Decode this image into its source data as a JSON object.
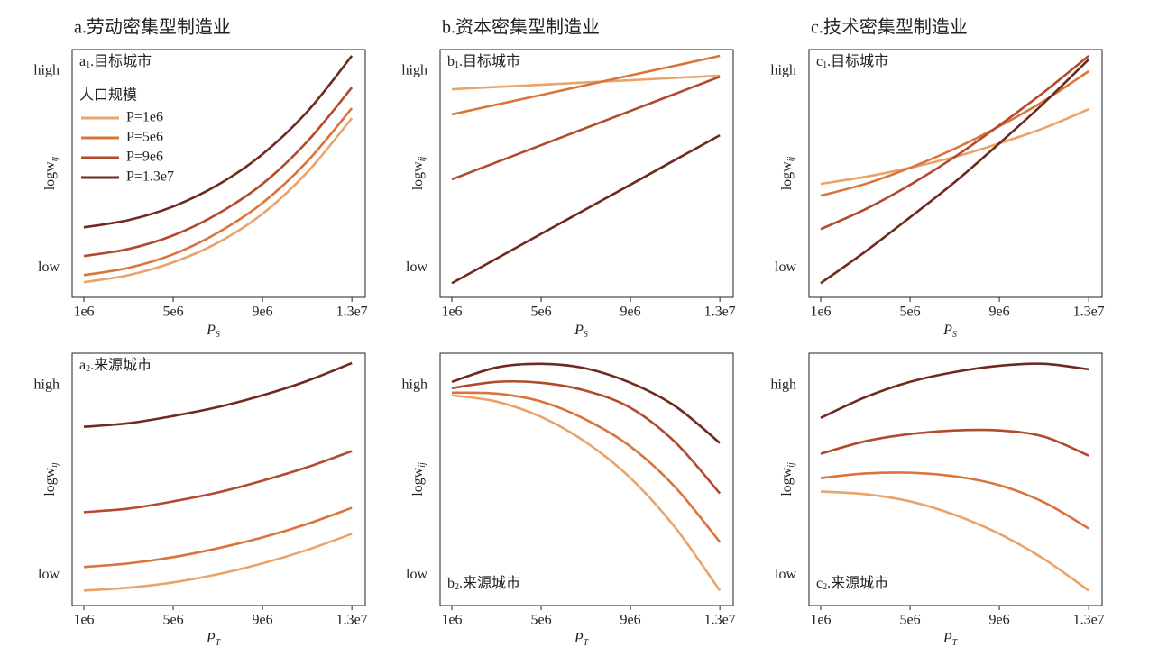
{
  "chart_data": [
    {
      "type": "line",
      "title": "a.劳动密集型制造业",
      "panel_label": {
        "text": "a",
        "sub": "1",
        "rest": ".目标城市"
      },
      "label_position": "top-left",
      "x_label": {
        "text": "P",
        "sub": "S"
      },
      "y_label": {
        "text": "logw",
        "sub": "ij"
      },
      "legend": {
        "title": "人口规模",
        "position": "top-left"
      },
      "x": [
        1000000,
        3000000,
        5000000,
        7000000,
        9000000,
        11000000,
        13000000
      ],
      "xlim": [
        475000,
        13600000
      ],
      "xticks": [
        {
          "value": 1000000,
          "label": "1e6"
        },
        {
          "value": 5000000,
          "label": "5e6"
        },
        {
          "value": 9000000,
          "label": "9e6"
        },
        {
          "value": 13000000,
          "label": "1.3e7"
        }
      ],
      "ylim": [
        -1.5,
        11.1
      ],
      "yticks": [
        {
          "value": 0,
          "label": "low"
        },
        {
          "value": 10,
          "label": "high"
        }
      ],
      "series": [
        {
          "name": "P=1e6",
          "color": "#e9a46c",
          "values": [
            -0.73,
            -0.37,
            0.28,
            1.28,
            2.75,
            4.86,
            7.61
          ]
        },
        {
          "name": "P=5e6",
          "color": "#d9743b",
          "values": [
            -0.37,
            0,
            0.69,
            1.79,
            3.3,
            5.41,
            8.12
          ]
        },
        {
          "name": "P=9e6",
          "color": "#b24a2e",
          "values": [
            0.6,
            0.96,
            1.65,
            2.75,
            4.27,
            6.42,
            9.17
          ]
        },
        {
          "name": "P=1.3e7",
          "color": "#6e2a1e",
          "values": [
            2.06,
            2.43,
            3.12,
            4.22,
            5.78,
            7.94,
            10.78
          ]
        }
      ]
    },
    {
      "type": "line",
      "title": "b.资本密集型制造业",
      "panel_label": {
        "text": "b",
        "sub": "1",
        "rest": ".目标城市"
      },
      "label_position": "top-left",
      "x_label": {
        "text": "P",
        "sub": "S"
      },
      "y_label": {
        "text": "logw",
        "sub": "ij"
      },
      "x": [
        1000000,
        3000000,
        5000000,
        7000000,
        9000000,
        11000000,
        13000000
      ],
      "xlim": [
        475000,
        13600000
      ],
      "xticks": [
        {
          "value": 1000000,
          "label": "1e6"
        },
        {
          "value": 5000000,
          "label": "5e6"
        },
        {
          "value": 9000000,
          "label": "9e6"
        },
        {
          "value": 13000000,
          "label": "1.3e7"
        }
      ],
      "ylim": [
        -1.5,
        11.1
      ],
      "yticks": [
        {
          "value": 0,
          "label": "low"
        },
        {
          "value": 10,
          "label": "high"
        }
      ],
      "series": [
        {
          "color": "#e9a46c",
          "values": [
            9.08,
            9.2,
            9.31,
            9.43,
            9.54,
            9.66,
            9.77
          ]
        },
        {
          "color": "#d9743b",
          "values": [
            7.8,
            8.3,
            8.79,
            9.29,
            9.79,
            10.28,
            10.78
          ]
        },
        {
          "color": "#b24a2e",
          "values": [
            4.5,
            5.37,
            6.24,
            7.11,
            7.98,
            8.85,
            9.72
          ]
        },
        {
          "color": "#6e2a1e",
          "values": [
            -0.78,
            0.47,
            1.73,
            2.98,
            4.23,
            5.49,
            6.74
          ]
        }
      ]
    },
    {
      "type": "line",
      "title": "c.技术密集型制造业",
      "panel_label": {
        "text": "c",
        "sub": "1",
        "rest": ".目标城市"
      },
      "label_position": "top-left",
      "x_label": {
        "text": "P",
        "sub": "S"
      },
      "y_label": {
        "text": "logw",
        "sub": "ij"
      },
      "x": [
        1000000,
        3000000,
        5000000,
        7000000,
        9000000,
        11000000,
        13000000
      ],
      "xlim": [
        475000,
        13600000
      ],
      "xticks": [
        {
          "value": 1000000,
          "label": "1e6"
        },
        {
          "value": 5000000,
          "label": "5e6"
        },
        {
          "value": 9000000,
          "label": "9e6"
        },
        {
          "value": 13000000,
          "label": "1.3e7"
        }
      ],
      "ylim": [
        -1.5,
        11.1
      ],
      "yticks": [
        {
          "value": 0,
          "label": "low"
        },
        {
          "value": 10,
          "label": "high"
        }
      ],
      "series": [
        {
          "color": "#e9a46c",
          "values": [
            4.27,
            4.63,
            5.09,
            5.64,
            6.33,
            7.11,
            8.07
          ]
        },
        {
          "color": "#d9743b",
          "values": [
            3.67,
            4.27,
            5.09,
            6.06,
            7.2,
            8.49,
            10.0
          ]
        },
        {
          "color": "#b24a2e",
          "values": [
            1.97,
            2.98,
            4.22,
            5.64,
            7.25,
            8.94,
            10.78
          ]
        },
        {
          "color": "#6e2a1e",
          "values": [
            -0.78,
            0.83,
            2.57,
            4.36,
            6.33,
            8.39,
            10.6
          ]
        }
      ]
    },
    {
      "type": "line",
      "panel_label": {
        "text": "a",
        "sub": "2",
        "rest": ".来源城市"
      },
      "label_position": "top-left",
      "x_label": {
        "text": "P",
        "sub": "T"
      },
      "y_label": {
        "text": "logw",
        "sub": "ij"
      },
      "x": [
        1000000,
        3000000,
        5000000,
        7000000,
        9000000,
        11000000,
        13000000
      ],
      "xlim": [
        475000,
        13600000
      ],
      "xticks": [
        {
          "value": 1000000,
          "label": "1e6"
        },
        {
          "value": 5000000,
          "label": "5e6"
        },
        {
          "value": 9000000,
          "label": "9e6"
        },
        {
          "value": 13000000,
          "label": "1.3e7"
        }
      ],
      "ylim": [
        -1.6,
        11.7
      ],
      "yticks": [
        {
          "value": 0,
          "label": "low"
        },
        {
          "value": 10,
          "label": "high"
        }
      ],
      "series": [
        {
          "color": "#e9a46c",
          "values": [
            -0.81,
            -0.66,
            -0.38,
            0.05,
            0.62,
            1.33,
            2.18
          ]
        },
        {
          "color": "#d9743b",
          "values": [
            0.43,
            0.62,
            0.95,
            1.42,
            1.99,
            2.7,
            3.55
          ]
        },
        {
          "color": "#b24a2e",
          "values": [
            3.32,
            3.51,
            3.89,
            4.36,
            4.98,
            5.69,
            6.54
          ]
        },
        {
          "color": "#6e2a1e",
          "values": [
            7.82,
            8.01,
            8.39,
            8.86,
            9.48,
            10.24,
            11.18
          ]
        }
      ]
    },
    {
      "type": "line",
      "panel_label": {
        "text": "b",
        "sub": "2",
        "rest": ".来源城市"
      },
      "label_position": "bottom-left",
      "x_label": {
        "text": "P",
        "sub": "T"
      },
      "y_label": {
        "text": "logw",
        "sub": "ij"
      },
      "x": [
        1000000,
        3000000,
        5000000,
        7000000,
        9000000,
        11000000,
        13000000
      ],
      "xlim": [
        475000,
        13600000
      ],
      "xticks": [
        {
          "value": 1000000,
          "label": "1e6"
        },
        {
          "value": 5000000,
          "label": "5e6"
        },
        {
          "value": 9000000,
          "label": "9e6"
        },
        {
          "value": 13000000,
          "label": "1.3e7"
        }
      ],
      "ylim": [
        -1.6,
        11.7
      ],
      "yticks": [
        {
          "value": 0,
          "label": "low"
        },
        {
          "value": 10,
          "label": "high"
        }
      ],
      "series": [
        {
          "color": "#e9a46c",
          "values": [
            9.48,
            9.15,
            8.34,
            7.01,
            5.12,
            2.51,
            -0.81
          ]
        },
        {
          "color": "#d9743b",
          "values": [
            9.62,
            9.57,
            9.15,
            8.2,
            6.78,
            4.64,
            1.75
          ]
        },
        {
          "color": "#b24a2e",
          "values": [
            9.86,
            10.19,
            10.14,
            9.72,
            8.82,
            7.01,
            4.31
          ]
        },
        {
          "color": "#6e2a1e",
          "values": [
            10.19,
            10.95,
            11.14,
            10.9,
            10.14,
            8.91,
            6.97
          ]
        }
      ]
    },
    {
      "type": "line",
      "panel_label": {
        "text": "c",
        "sub": "2",
        "rest": ".来源城市"
      },
      "label_position": "bottom-left",
      "x_label": {
        "text": "P",
        "sub": "T"
      },
      "y_label": {
        "text": "logw",
        "sub": "ij"
      },
      "x": [
        1000000,
        3000000,
        5000000,
        7000000,
        9000000,
        11000000,
        13000000
      ],
      "xlim": [
        475000,
        13600000
      ],
      "xticks": [
        {
          "value": 1000000,
          "label": "1e6"
        },
        {
          "value": 5000000,
          "label": "5e6"
        },
        {
          "value": 9000000,
          "label": "9e6"
        },
        {
          "value": 13000000,
          "label": "1.3e7"
        }
      ],
      "ylim": [
        -1.6,
        11.7
      ],
      "yticks": [
        {
          "value": 0,
          "label": "low"
        },
        {
          "value": 10,
          "label": "high"
        }
      ],
      "series": [
        {
          "color": "#e9a46c",
          "values": [
            4.41,
            4.27,
            3.89,
            3.18,
            2.18,
            0.85,
            -0.81
          ]
        },
        {
          "color": "#d9743b",
          "values": [
            5.12,
            5.36,
            5.4,
            5.21,
            4.74,
            3.84,
            2.46
          ]
        },
        {
          "color": "#b24a2e",
          "values": [
            6.4,
            7.06,
            7.44,
            7.63,
            7.63,
            7.3,
            6.3
          ]
        },
        {
          "color": "#6e2a1e",
          "values": [
            8.29,
            9.38,
            10.19,
            10.71,
            11.04,
            11.14,
            10.85
          ]
        }
      ]
    }
  ]
}
